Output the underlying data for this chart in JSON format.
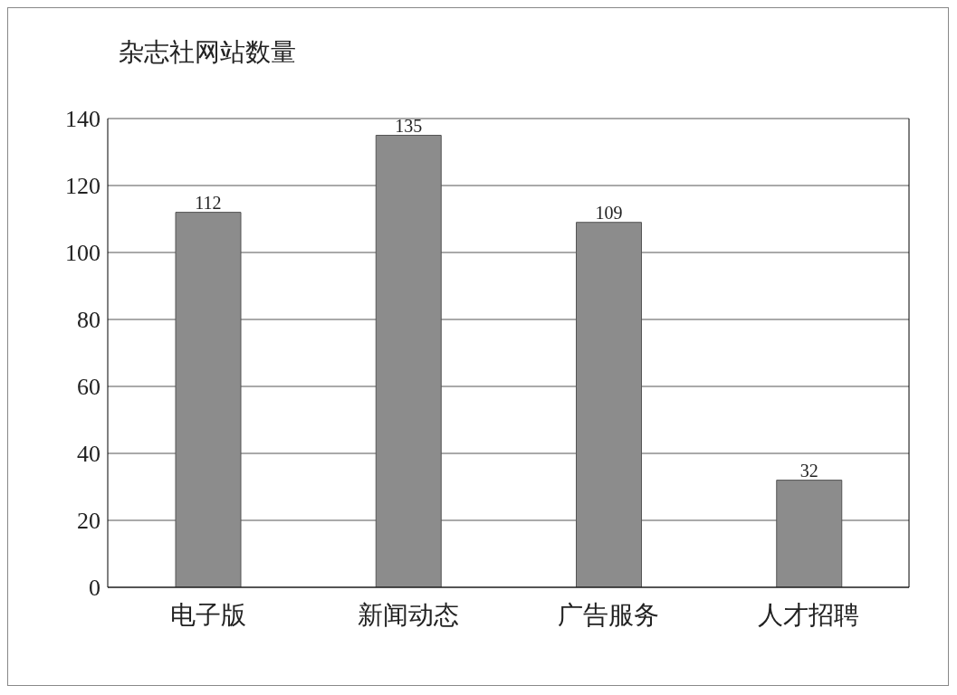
{
  "chart_data": {
    "type": "bar",
    "title": "杂志社网站数量",
    "categories": [
      "电子版",
      "新闻动态",
      "广告服务",
      "人才招聘"
    ],
    "values": [
      112,
      135,
      109,
      32
    ],
    "color": "#8c8c8c",
    "ylim": [
      0,
      140
    ],
    "yticks": [
      0,
      20,
      40,
      60,
      80,
      100,
      120,
      140
    ],
    "grid": "y",
    "data_labels": true,
    "legend": false
  }
}
